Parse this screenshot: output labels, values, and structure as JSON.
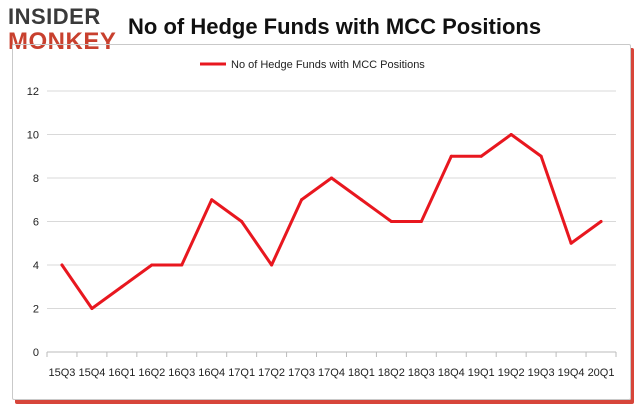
{
  "logo": {
    "line1": "INSIDER",
    "line2": "MONKEY"
  },
  "chart_data": {
    "type": "line",
    "title": "No of Hedge Funds with MCC Positions",
    "categories": [
      "2015Q3",
      "2015Q4",
      "2016Q1",
      "2016Q2",
      "2016Q3",
      "2016Q4",
      "2017Q1",
      "2017Q2",
      "2017Q3",
      "2017Q4",
      "2018Q1",
      "2018Q2",
      "2018Q3",
      "2018Q4",
      "2019Q1",
      "2019Q2",
      "2019Q3",
      "2019Q4",
      "2020Q1"
    ],
    "tick_labels": [
      "15Q3",
      "15Q4",
      "16Q1",
      "16Q2",
      "16Q3",
      "16Q4",
      "17Q1",
      "17Q2",
      "17Q3",
      "17Q4",
      "18Q1",
      "18Q2",
      "18Q3",
      "18Q4",
      "19Q1",
      "19Q2",
      "19Q3",
      "19Q4",
      "20Q1"
    ],
    "series": [
      {
        "name": "No of Hedge Funds with MCC Positions",
        "values": [
          4,
          2,
          3,
          4,
          4,
          7,
          6,
          4,
          7,
          8,
          7,
          6,
          6,
          9,
          9,
          10,
          9,
          5,
          6
        ]
      }
    ],
    "ylim": [
      0,
      12
    ],
    "yticks": [
      0,
      2,
      4,
      6,
      8,
      10,
      12
    ],
    "grid": true,
    "legend": "top",
    "line_color": "#e8171f"
  }
}
